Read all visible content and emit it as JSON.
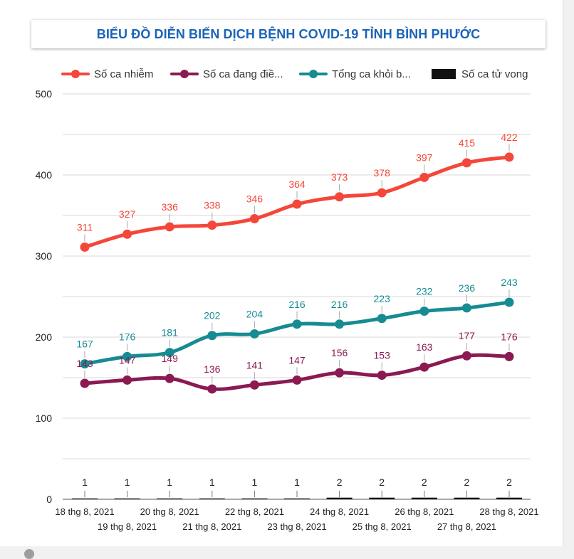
{
  "title": "BIỂU ĐỒ DIỄN BIẾN DỊCH BỆNH COVID-19 TỈNH BÌNH PHƯỚC",
  "chart_data": {
    "type": "line",
    "title": "BIỂU ĐỒ DIỄN BIẾN DỊCH BỆNH COVID-19 TỈNH BÌNH PHƯỚC",
    "categories": [
      "18 thg 8, 2021",
      "19 thg 8, 2021",
      "20 thg 8, 2021",
      "21 thg 8, 2021",
      "22 thg 8, 2021",
      "23 thg 8, 2021",
      "24 thg 8, 2021",
      "25 thg 8, 2021",
      "26 thg 8, 2021",
      "27 thg 8, 2021",
      "28 thg 8, 2021"
    ],
    "ylim": [
      0,
      500
    ],
    "yticks": [
      0,
      100,
      200,
      300,
      400,
      500
    ],
    "grid": true,
    "legend_position": "top",
    "series": [
      {
        "name": "Số ca nhiễm",
        "legend_label": "Số ca nhiễm",
        "color": "#f4473a",
        "marker": "line",
        "values": [
          311,
          327,
          336,
          338,
          346,
          364,
          373,
          378,
          397,
          415,
          422
        ]
      },
      {
        "name": "Số ca đang điều trị",
        "legend_label": "Số ca đang điề...",
        "color": "#8b1a52",
        "marker": "line",
        "values": [
          143,
          147,
          149,
          136,
          141,
          147,
          156,
          153,
          163,
          177,
          176
        ]
      },
      {
        "name": "Tổng ca khỏi bệnh",
        "legend_label": "Tổng ca khỏi b...",
        "color": "#168b92",
        "marker": "line",
        "values": [
          167,
          176,
          181,
          202,
          204,
          216,
          216,
          223,
          232,
          236,
          243
        ]
      },
      {
        "name": "Số ca tử vong",
        "legend_label": "Số ca tử vong",
        "color": "#111111",
        "marker": "bar",
        "values": [
          1,
          1,
          1,
          1,
          1,
          1,
          2,
          2,
          2,
          2,
          2
        ]
      }
    ]
  }
}
